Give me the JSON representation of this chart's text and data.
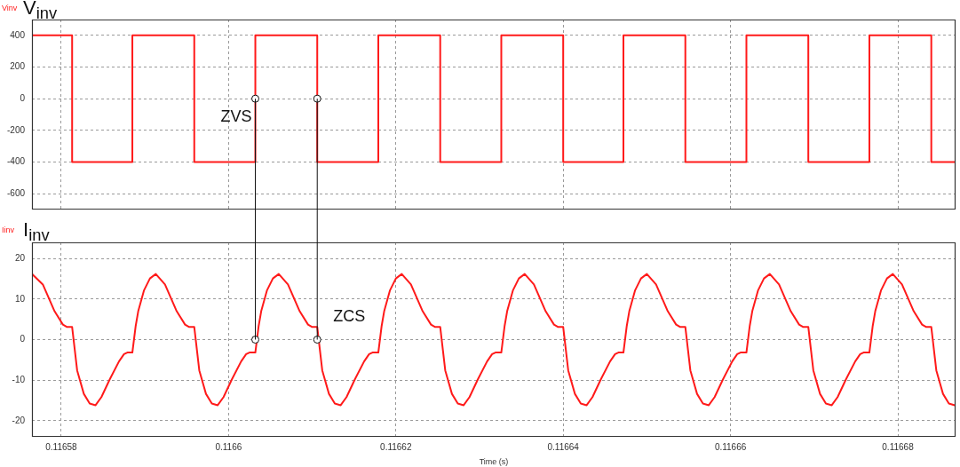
{
  "chart_data": [
    {
      "type": "step",
      "title": "V$_{inv}$",
      "legend": "top left",
      "grid": true,
      "tick_labels": "y",
      "xlim": [
        0.1165765,
        0.1166869
      ],
      "xticks": [
        0.11658,
        0.1166,
        0.11662,
        0.11664,
        0.11666,
        0.11668
      ],
      "ylim": [
        -700,
        500
      ],
      "yticks": [
        -600,
        -400,
        -200,
        0,
        200,
        400
      ],
      "x": [
        0.1165765,
        0.1165813,
        0.1165885,
        0.1165959,
        0.1166032,
        0.1166106,
        0.1166179,
        0.1166253,
        0.1166326,
        0.11664,
        0.1166472,
        0.1166546,
        0.1166619,
        0.1166693,
        0.1166766,
        0.116684,
        0.1166869
      ],
      "series": [
        {
          "name": "Vinv",
          "color": "#ff1a1a",
          "values": [
            400,
            -400,
            400,
            -400,
            400,
            -400,
            400,
            -400,
            400,
            -400,
            400,
            -400,
            400,
            -400,
            400,
            -400,
            -400
          ]
        },
        {
          "type": "scatter",
          "marker": "circle",
          "color": "#111111",
          "values": [
            null,
            null,
            null,
            null,
            0,
            0,
            null,
            null,
            null,
            null,
            null,
            null,
            null,
            null,
            null,
            null,
            null
          ]
        }
      ],
      "ref_lines": [
        {
          "axis": "x",
          "value": 0.1166032,
          "color": "#111111"
        },
        {
          "axis": "x",
          "value": 0.1166106,
          "color": "#111111"
        }
      ],
      "annotations": [
        {
          "text": "ZVS",
          "x": 0.1166032,
          "y": 0
        }
      ]
    },
    {
      "type": "line",
      "title": "I$_{inv}$",
      "legend": "top left",
      "grid": true,
      "xlabel": "Time (s)",
      "xlim": [
        0.1165765,
        0.1166869
      ],
      "xticks": [
        0.11658,
        0.1166,
        0.11662,
        0.11664,
        0.11666,
        0.11668
      ],
      "ylim": [
        -24,
        24
      ],
      "yticks": [
        -20,
        -10,
        0,
        10,
        20
      ],
      "x": [
        0.1165765,
        0.1165778,
        0.1165792,
        0.1165802,
        0.1165807,
        0.1165813,
        0.1165819,
        0.1165827,
        0.1165834,
        0.1165841,
        0.1165848,
        0.1165858,
        0.1165869,
        0.1165875,
        0.1165879,
        0.1165885,
        0.1165889,
        0.1165892,
        0.1165899,
        0.1165906,
        0.1165913,
        0.1165924,
        0.1165938,
        0.1165948,
        0.1165953,
        0.1165959,
        0.1165965,
        0.1165973,
        0.116598,
        0.1165987,
        0.1165994,
        0.1166004,
        0.1166015,
        0.1166021,
        0.1166025,
        0.1166032,
        0.1166036,
        0.1166039,
        0.1166046,
        0.1166053,
        0.116606,
        0.1166071,
        0.1166085,
        0.1166095,
        0.11661,
        0.1166106,
        0.1166112,
        0.116612,
        0.1166127,
        0.1166134,
        0.1166141,
        0.1166151,
        0.1166162,
        0.1166168,
        0.1166172,
        0.1166179,
        0.1166183,
        0.1166186,
        0.1166193,
        0.11662,
        0.1166207,
        0.1166218,
        0.1166232,
        0.1166242,
        0.1166247,
        0.1166253,
        0.1166259,
        0.1166267,
        0.1166274,
        0.1166281,
        0.1166288,
        0.1166298,
        0.1166309,
        0.1166315,
        0.1166319,
        0.1166326,
        0.116633,
        0.1166333,
        0.116634,
        0.1166347,
        0.1166354,
        0.1166365,
        0.1166379,
        0.1166389,
        0.1166394,
        0.11664,
        0.1166406,
        0.1166414,
        0.1166421,
        0.1166428,
        0.1166435,
        0.1166445,
        0.1166456,
        0.1166462,
        0.1166466,
        0.1166472,
        0.1166476,
        0.1166479,
        0.1166486,
        0.1166493,
        0.11665,
        0.1166511,
        0.1166525,
        0.1166535,
        0.116654,
        0.1166546,
        0.1166552,
        0.116656,
        0.1166567,
        0.1166574,
        0.1166581,
        0.1166591,
        0.1166602,
        0.1166608,
        0.1166612,
        0.1166619,
        0.1166623,
        0.1166626,
        0.1166633,
        0.116664,
        0.1166647,
        0.1166658,
        0.1166672,
        0.1166682,
        0.1166687,
        0.1166693,
        0.1166699,
        0.1166707,
        0.1166714,
        0.1166721,
        0.1166728,
        0.1166738,
        0.1166749,
        0.1166755,
        0.1166759,
        0.1166766,
        0.116677,
        0.1166773,
        0.116678,
        0.1166787,
        0.1166794,
        0.1166805,
        0.1166819,
        0.1166829,
        0.1166834,
        0.116684,
        0.1166846,
        0.1166854,
        0.1166861,
        0.1166868
      ],
      "series": [
        {
          "name": "Iinv",
          "color": "#ff1a1a",
          "values": [
            16.2,
            13.6,
            7.0,
            3.7,
            3.1,
            3.1,
            -7.6,
            -13.4,
            -15.8,
            -16.2,
            -14.2,
            -9.8,
            -5.4,
            -3.6,
            -3.2,
            -3.2,
            3.4,
            7.0,
            12.2,
            15.1,
            16.2,
            13.6,
            7.0,
            3.7,
            3.1,
            3.1,
            -7.6,
            -13.4,
            -15.8,
            -16.2,
            -14.2,
            -9.8,
            -5.4,
            -3.6,
            -3.2,
            -3.2,
            3.4,
            7.0,
            12.2,
            15.1,
            16.2,
            13.6,
            7.0,
            3.7,
            3.1,
            3.1,
            -7.6,
            -13.4,
            -15.8,
            -16.2,
            -14.2,
            -9.8,
            -5.4,
            -3.6,
            -3.2,
            -3.2,
            3.4,
            7.0,
            12.2,
            15.1,
            16.2,
            13.6,
            7.0,
            3.7,
            3.1,
            3.1,
            -7.6,
            -13.4,
            -15.8,
            -16.2,
            -14.2,
            -9.8,
            -5.4,
            -3.6,
            -3.2,
            -3.2,
            3.4,
            7.0,
            12.2,
            15.1,
            16.2,
            13.6,
            7.0,
            3.7,
            3.1,
            3.1,
            -7.6,
            -13.4,
            -15.8,
            -16.2,
            -14.2,
            -9.8,
            -5.4,
            -3.6,
            -3.2,
            -3.2,
            3.4,
            7.0,
            12.2,
            15.1,
            16.2,
            13.6,
            7.0,
            3.7,
            3.1,
            3.1,
            -7.6,
            -13.4,
            -15.8,
            -16.2,
            -14.2,
            -9.8,
            -5.4,
            -3.6,
            -3.2,
            -3.2,
            3.4,
            7.0,
            12.2,
            15.1,
            16.2,
            13.6,
            7.0,
            3.7,
            3.1,
            3.1,
            -7.6,
            -13.4,
            -15.8,
            -16.2,
            -14.2,
            -9.8,
            -5.4,
            -3.6,
            -3.2,
            -3.2,
            3.4,
            7.0,
            12.2,
            15.1,
            16.2,
            13.6,
            7.0,
            3.7,
            3.1,
            3.1,
            -7.6,
            -13.4,
            -15.8,
            -16.2
          ]
        },
        {
          "type": "scatter",
          "marker": "circle",
          "color": "#111111",
          "values": [
            null,
            null,
            null,
            null,
            null,
            null,
            null,
            null,
            null,
            null,
            null,
            null,
            null,
            null,
            null,
            null,
            null,
            null,
            null,
            null,
            null,
            null,
            null,
            null,
            null,
            null,
            null,
            null,
            null,
            null,
            null,
            null,
            null,
            null,
            null,
            0,
            null,
            null,
            null,
            null,
            null,
            null,
            null,
            null,
            null,
            0,
            null,
            null,
            null,
            null,
            null,
            null,
            null,
            null,
            null,
            null,
            null,
            null,
            null,
            null,
            null,
            null,
            null,
            null,
            null,
            null,
            null,
            null,
            null,
            null,
            null,
            null,
            null,
            null,
            null,
            null,
            null,
            null,
            null,
            null,
            null,
            null,
            null,
            null,
            null,
            null,
            null,
            null,
            null,
            null,
            null,
            null,
            null,
            null,
            null,
            null,
            null,
            null,
            null,
            null,
            null,
            null,
            null,
            null,
            null,
            null,
            null,
            null,
            null,
            null,
            null,
            null,
            null,
            null,
            null,
            null,
            null,
            null,
            null,
            null,
            null,
            null,
            null,
            null,
            null,
            null,
            null,
            null,
            null,
            null,
            null,
            null,
            null,
            null,
            null,
            null,
            null,
            null,
            null,
            null,
            null,
            null,
            null,
            null,
            null,
            null,
            null,
            null,
            null,
            null
          ]
        }
      ],
      "ref_lines": [
        {
          "axis": "x",
          "value": 0.1166032,
          "color": "#111111"
        },
        {
          "axis": "x",
          "value": 0.1166106,
          "color": "#111111"
        }
      ],
      "annotations": [
        {
          "text": "ZCS",
          "x": 0.1166106,
          "y": 0
        }
      ]
    }
  ]
}
